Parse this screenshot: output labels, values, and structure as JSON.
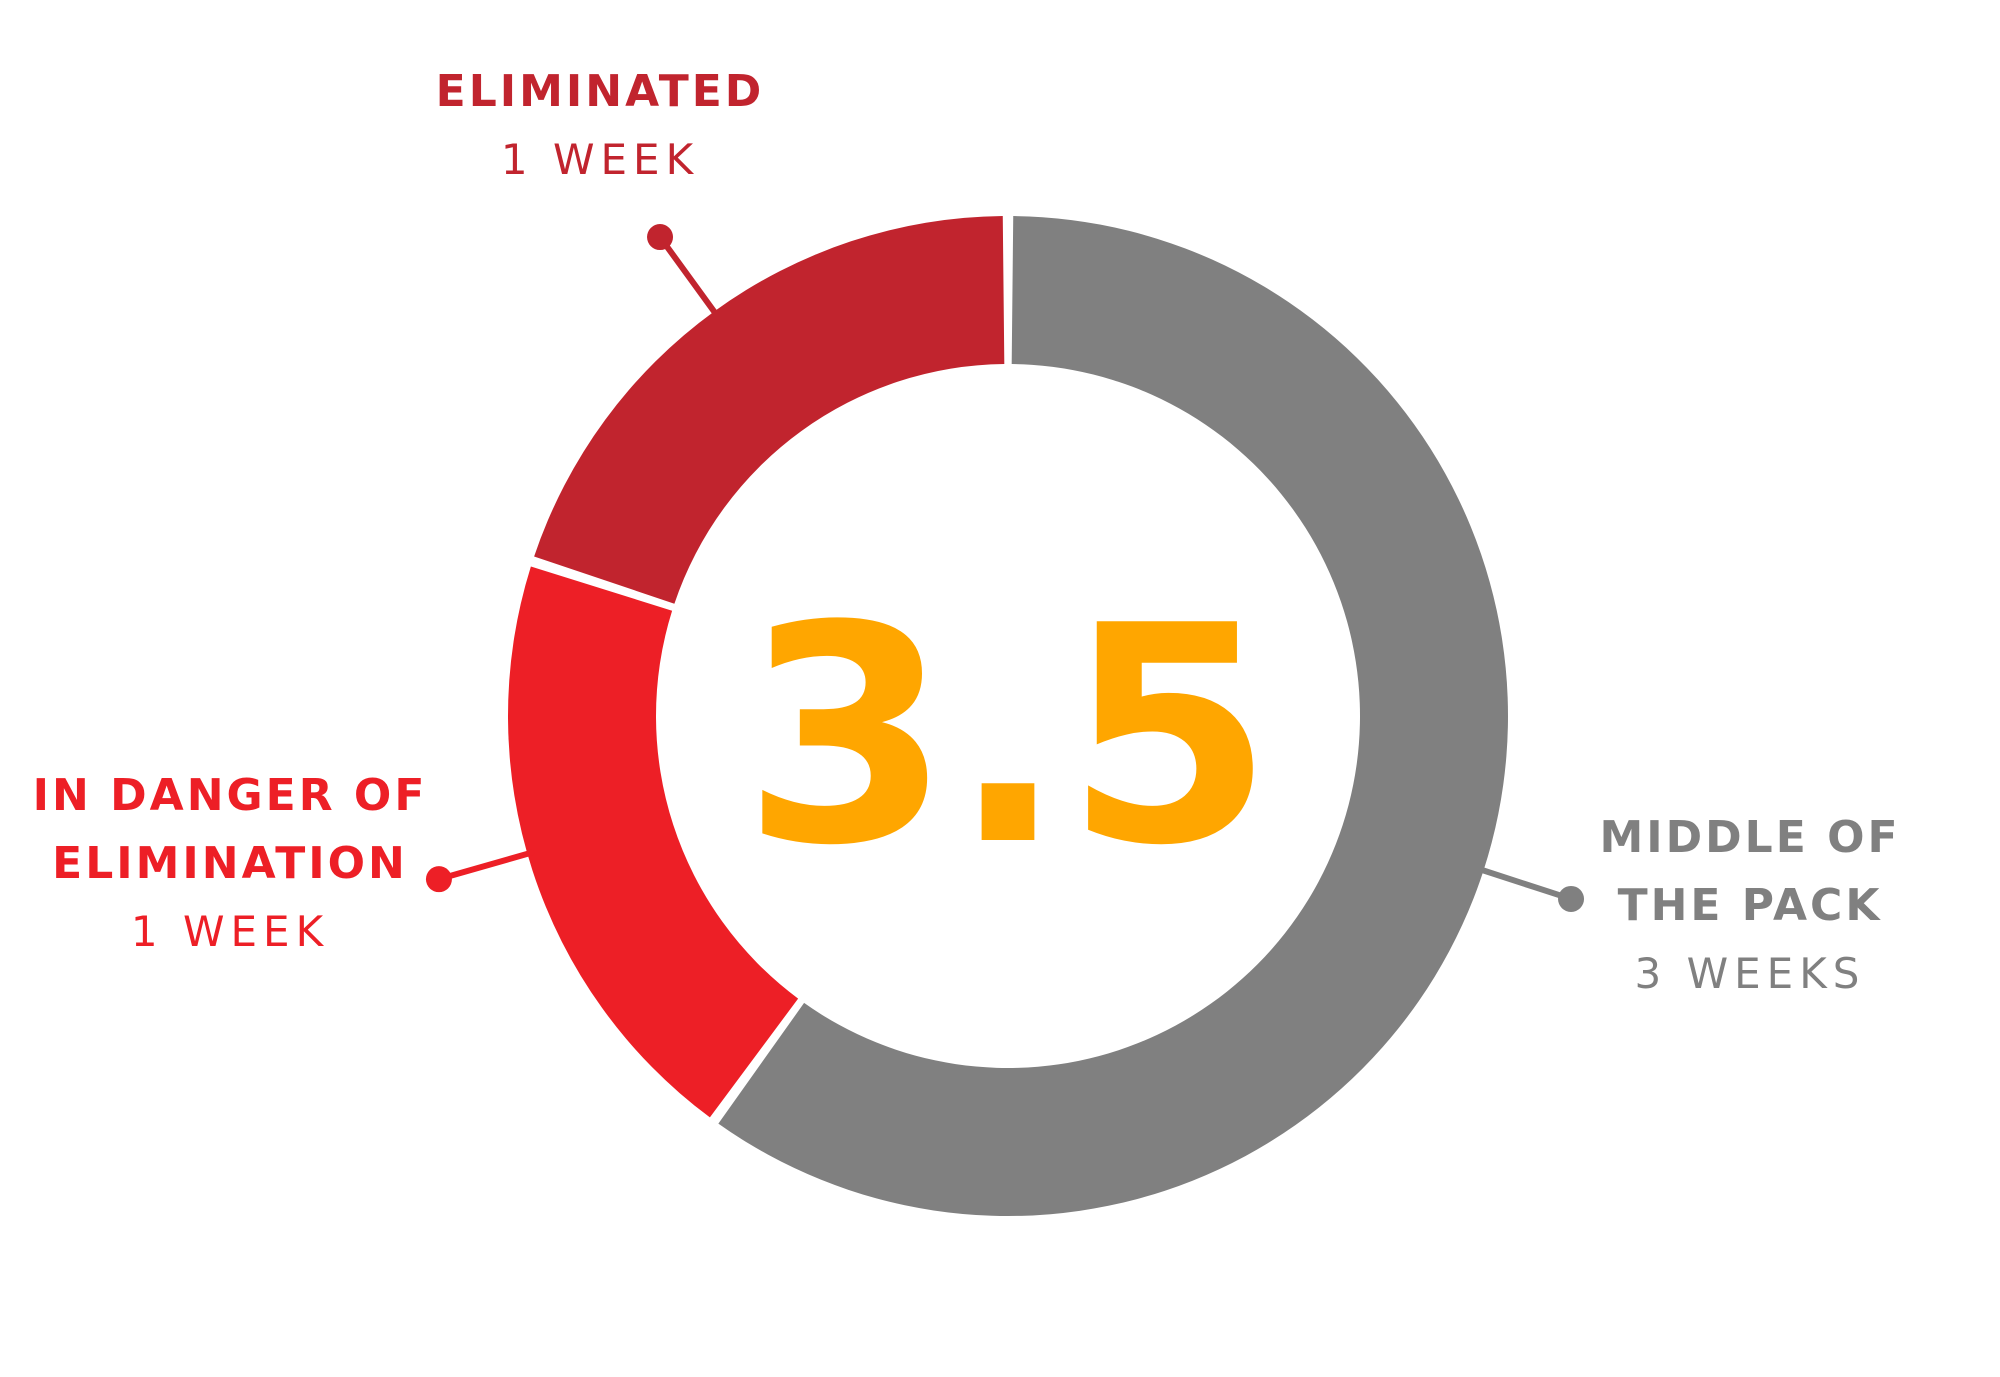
{
  "chart_data": {
    "type": "pie",
    "donut": true,
    "center_value": "3.5",
    "categories": [
      "MIDDLE OF THE PACK",
      "IN DANGER OF ELIMINATION",
      "ELIMINATED"
    ],
    "values": [
      3,
      1,
      1
    ],
    "sub_labels": [
      "3 WEEKS",
      "1 WEEK",
      "1 WEEK"
    ],
    "label_lines": [
      [
        "MIDDLE OF",
        "THE PACK"
      ],
      [
        "IN DANGER OF",
        "ELIMINATION"
      ],
      [
        "ELIMINATED"
      ]
    ],
    "colors": [
      "#808080",
      "#ED1F26",
      "#C1242E"
    ],
    "center_color": "#FFA600"
  }
}
